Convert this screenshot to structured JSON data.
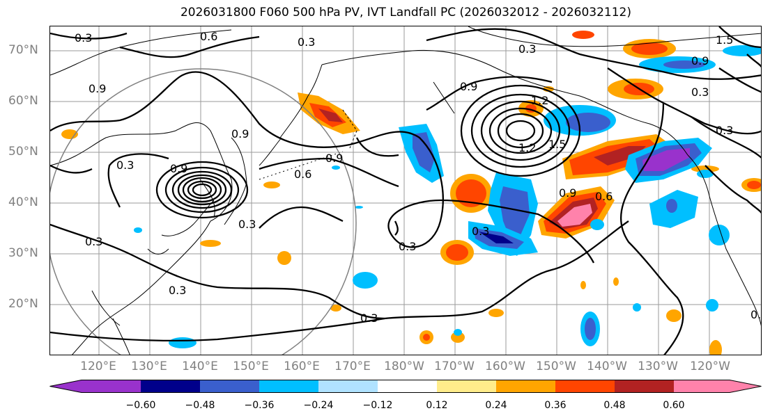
{
  "title": "2026031800 F060 500 hPa PV, IVT Landfall PC (2026032012 - 2026032112)",
  "lat_labels": [
    "70°N",
    "60°N",
    "50°N",
    "40°N",
    "30°N",
    "20°N"
  ],
  "lon_labels": [
    "120°E",
    "130°E",
    "140°E",
    "150°E",
    "160°E",
    "170°E",
    "180°W",
    "170°W",
    "160°W",
    "150°W",
    "140°W",
    "130°W",
    "120°W"
  ],
  "contour_labels": [
    "0.3",
    "0.6",
    "0.9",
    "1.2",
    "1.5"
  ],
  "colorbar": {
    "colors": [
      "#9932CC",
      "#00008B",
      "#3A5FCD",
      "#00BFFF",
      "#B0E2FF",
      "#FFFFFF",
      "#FFEC8B",
      "#FFA500",
      "#FF4500",
      "#B22222",
      "#FF82AB"
    ],
    "ticks": [
      "−0.60",
      "−0.48",
      "−0.36",
      "−0.24",
      "−0.12",
      "0.12",
      "0.24",
      "0.36",
      "0.48",
      "0.60"
    ]
  }
}
